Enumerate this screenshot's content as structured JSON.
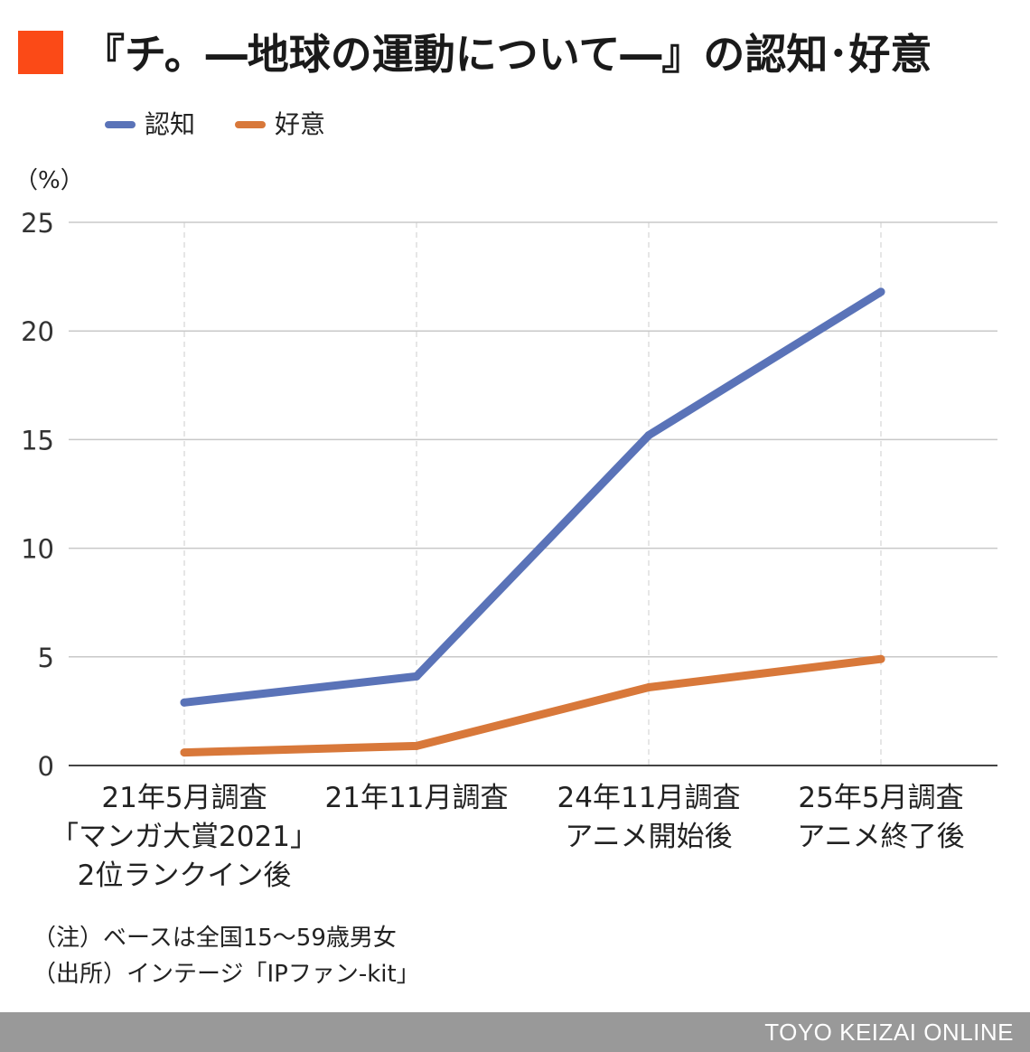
{
  "colors": {
    "accent": "#fb4a17",
    "recognition": "#5a73b8",
    "favorability": "#d8783a",
    "grid": "#c8c8c8",
    "footer": "#999999"
  },
  "header": {
    "title": "『チ。―地球の運動について―』の認知･好意"
  },
  "footer": {
    "brand": "TOYO KEIZAI ONLINE"
  },
  "notes": [
    "（注）ベースは全国15～59歳男女",
    "（出所）インテージ「IPファン-kit」"
  ],
  "chart_data": {
    "type": "line",
    "title": "『チ。―地球の運動について―』の認知･好意",
    "ylabel": "（%）",
    "xlabel": "",
    "ylim": [
      0,
      25
    ],
    "yticks": [
      0,
      5,
      10,
      15,
      20,
      25
    ],
    "grid": true,
    "legend_position": "top-left",
    "categories": [
      [
        "21年5月調査",
        "「マンガ大賞2021」",
        "2位ランクイン後"
      ],
      [
        "21年11月調査"
      ],
      [
        "24年11月調査",
        "アニメ開始後"
      ],
      [
        "25年5月調査",
        "アニメ終了後"
      ]
    ],
    "series": [
      {
        "name": "認知",
        "color": "#5a73b8",
        "values": [
          2.9,
          4.1,
          15.2,
          21.8
        ]
      },
      {
        "name": "好意",
        "color": "#d8783a",
        "values": [
          0.6,
          0.9,
          3.6,
          4.9
        ]
      }
    ]
  }
}
